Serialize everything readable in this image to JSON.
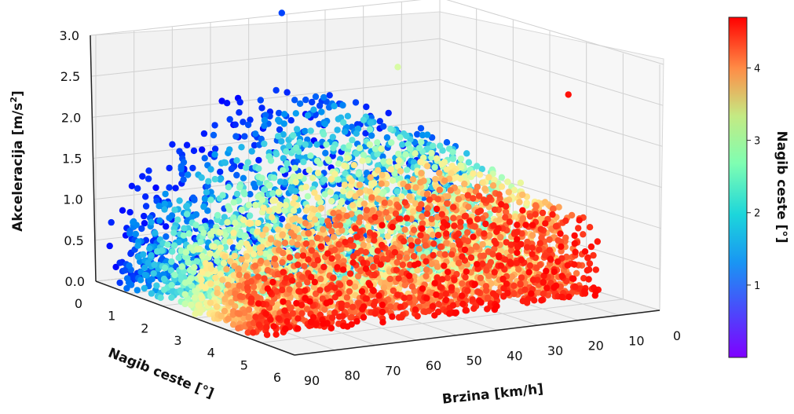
{
  "chart_data": {
    "type": "scatter",
    "projection": "3d",
    "x_axis": {
      "label": "Brzina [km/h]",
      "ticks": [
        0,
        10,
        20,
        30,
        40,
        50,
        60,
        70,
        80,
        90
      ],
      "range": [
        0,
        90
      ]
    },
    "y_axis": {
      "label": "Nagib ceste [°]",
      "ticks": [
        0,
        1,
        2,
        3,
        4,
        5,
        6
      ],
      "range": [
        0,
        6
      ]
    },
    "z_axis": {
      "label_main": "Akceleracija [m/s",
      "label_sup": "2",
      "label_end": "]",
      "ticks": [
        "0.0",
        "0.5",
        "1.0",
        "1.5",
        "2.0",
        "2.5",
        "3.0"
      ],
      "range": [
        0,
        3
      ]
    },
    "colorbar": {
      "label": "Nagib ceste [°]",
      "ticks": [
        1,
        2,
        3,
        4
      ],
      "range": [
        0,
        4.7
      ],
      "colormap": "rainbow"
    },
    "grid": true,
    "series": [
      {
        "description_of_trend": "max acceleration decreases as speed increases; colour encodes road slope",
        "upper_envelope": [
          {
            "speed": 88,
            "accel": 0.9
          },
          {
            "speed": 80,
            "accel": 1.3
          },
          {
            "speed": 70,
            "accel": 1.7
          },
          {
            "speed": 60,
            "accel": 2.0
          },
          {
            "speed": 50,
            "accel": 2.2
          },
          {
            "speed": 40,
            "accel": 2.25
          },
          {
            "speed": 30,
            "accel": 2.15
          },
          {
            "speed": 20,
            "accel": 1.9
          },
          {
            "speed": 10,
            "accel": 1.6
          },
          {
            "speed": 2,
            "accel": 1.4
          }
        ],
        "outliers": [
          {
            "speed": 45,
            "accel": 3.1,
            "slope": 0.4
          },
          {
            "speed": 35,
            "accel": 2.7,
            "slope": 2.6
          },
          {
            "speed": 10,
            "accel": 2.5,
            "slope": 4.6
          }
        ]
      }
    ]
  }
}
